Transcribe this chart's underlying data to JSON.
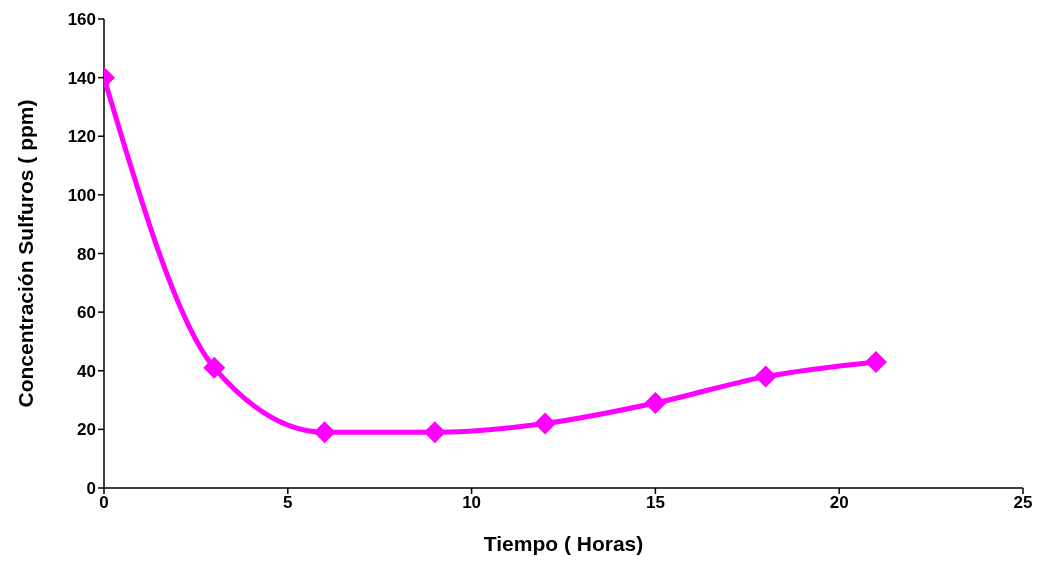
{
  "chart_data": {
    "type": "line",
    "xlabel": "Tiempo ( Horas)",
    "ylabel": "Concentración Sulfuros ( ppm)",
    "x": [
      0,
      3,
      6,
      9,
      12,
      15,
      18,
      21
    ],
    "series": [
      {
        "color": "#ff00ff",
        "values": [
          140,
          41,
          19,
          19,
          22,
          29,
          38,
          43
        ]
      }
    ],
    "xlim": [
      0,
      25
    ],
    "xticks": [
      0,
      5,
      10,
      15,
      20,
      25
    ],
    "ylim": [
      0,
      160
    ],
    "yticks": [
      0,
      20,
      40,
      60,
      80,
      100,
      120,
      140,
      160
    ],
    "grid": false,
    "legend": false,
    "marker": "diamond",
    "line_style": "solid"
  }
}
